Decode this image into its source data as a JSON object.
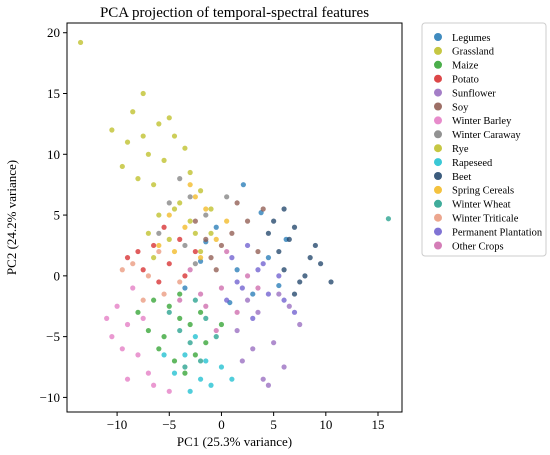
{
  "chart_data": {
    "type": "scatter",
    "title": "PCA projection of temporal-spectral features",
    "xlabel": "PC1 (25.3% variance)",
    "ylabel": "PC2 (24.2% variance)",
    "xlim": [
      -14.8,
      17.3
    ],
    "ylim": [
      -11.2,
      20.8
    ],
    "xticks": [
      -10,
      -5,
      0,
      5,
      10,
      15
    ],
    "yticks": [
      -10,
      -5,
      0,
      5,
      10,
      15,
      20
    ],
    "xtick_labels": [
      "−10",
      "−5",
      "0",
      "5",
      "10",
      "15"
    ],
    "ytick_labels": [
      "−10",
      "−5",
      "0",
      "5",
      "10",
      "15",
      "20"
    ],
    "grid": false,
    "legend_position": "outside-right",
    "series": [
      {
        "name": "Legumes",
        "color": "#1f77b4",
        "points": [
          [
            2.1,
            7.5
          ],
          [
            3.8,
            5.2
          ],
          [
            -1.5,
            2.8
          ],
          [
            4.5,
            1.5
          ],
          [
            0.8,
            -2.2
          ],
          [
            6.2,
            3.0
          ],
          [
            -3.5,
            -1.0
          ],
          [
            1.5,
            0.5
          ],
          [
            -0.5,
            4.0
          ],
          [
            3.0,
            -1.5
          ],
          [
            5.5,
            -0.8
          ],
          [
            -2.0,
            1.2
          ]
        ]
      },
      {
        "name": "Grassland",
        "color": "#bcbd22",
        "points": [
          [
            -7.5,
            15.0
          ],
          [
            -8.5,
            13.5
          ],
          [
            -6.0,
            12.5
          ],
          [
            -9.0,
            11.0
          ],
          [
            -4.5,
            11.5
          ],
          [
            -7.0,
            10.0
          ],
          [
            -5.5,
            9.5
          ],
          [
            -3.0,
            8.5
          ],
          [
            -8.0,
            8.0
          ],
          [
            -2.0,
            7.0
          ],
          [
            -6.5,
            7.5
          ],
          [
            -4.0,
            6.0
          ],
          [
            -1.0,
            5.5
          ],
          [
            -9.5,
            9.0
          ],
          [
            -5.0,
            13.0
          ],
          [
            -3.5,
            10.5
          ],
          [
            -10.5,
            12.0
          ],
          [
            -6.0,
            5.0
          ],
          [
            -2.5,
            3.5
          ],
          [
            -7.5,
            11.5
          ]
        ]
      },
      {
        "name": "Maize",
        "color": "#2ca02c",
        "points": [
          [
            -4.0,
            -3.5
          ],
          [
            -5.5,
            -5.0
          ],
          [
            -2.5,
            -6.5
          ],
          [
            -6.5,
            -2.0
          ],
          [
            -3.0,
            -4.0
          ],
          [
            -7.0,
            -4.5
          ],
          [
            -1.5,
            -5.5
          ],
          [
            -4.5,
            -7.0
          ],
          [
            -5.0,
            -2.5
          ],
          [
            -2.0,
            -3.0
          ],
          [
            -6.0,
            -6.0
          ],
          [
            -3.5,
            -8.0
          ],
          [
            0.0,
            -4.0
          ],
          [
            -8.0,
            -3.0
          ],
          [
            -4.0,
            -1.5
          ]
        ]
      },
      {
        "name": "Potato",
        "color": "#d62728",
        "points": [
          [
            -6.5,
            2.5
          ],
          [
            -5.0,
            1.0
          ],
          [
            -7.5,
            0.5
          ],
          [
            -4.0,
            3.0
          ],
          [
            -8.0,
            2.0
          ],
          [
            -3.5,
            0.0
          ],
          [
            -6.0,
            -0.5
          ],
          [
            -9.0,
            1.5
          ],
          [
            -2.5,
            2.0
          ],
          [
            -5.5,
            4.0
          ]
        ]
      },
      {
        "name": "Sunflower",
        "color": "#9467bd",
        "points": [
          [
            3.5,
            -3.0
          ],
          [
            5.0,
            -5.5
          ],
          [
            2.0,
            -7.0
          ],
          [
            6.5,
            -2.5
          ],
          [
            4.0,
            -8.5
          ],
          [
            1.5,
            -4.5
          ],
          [
            7.5,
            -4.0
          ],
          [
            3.0,
            -6.0
          ],
          [
            5.5,
            -1.5
          ],
          [
            2.5,
            -2.0
          ],
          [
            6.0,
            -7.5
          ],
          [
            4.5,
            -9.0
          ]
        ]
      },
      {
        "name": "Soy",
        "color": "#8c564b",
        "points": [
          [
            1.0,
            3.5
          ],
          [
            -1.0,
            1.5
          ],
          [
            2.5,
            4.5
          ],
          [
            0.0,
            2.5
          ],
          [
            -2.5,
            4.5
          ],
          [
            3.5,
            2.0
          ],
          [
            1.5,
            6.0
          ],
          [
            -0.5,
            0.5
          ],
          [
            4.0,
            5.5
          ],
          [
            -1.5,
            3.0
          ]
        ]
      },
      {
        "name": "Winter Barley",
        "color": "#e377c2",
        "points": [
          [
            -9.0,
            -4.0
          ],
          [
            -8.0,
            -6.5
          ],
          [
            -10.0,
            -2.5
          ],
          [
            -7.0,
            -8.0
          ],
          [
            -9.5,
            -6.0
          ],
          [
            -6.5,
            -9.0
          ],
          [
            -10.5,
            -5.0
          ],
          [
            -8.5,
            -1.0
          ],
          [
            -7.5,
            -3.5
          ],
          [
            -5.0,
            -9.5
          ],
          [
            -9.0,
            -8.5
          ],
          [
            -11.0,
            -3.5
          ]
        ]
      },
      {
        "name": "Winter Caraway",
        "color": "#7f7f7f",
        "points": [
          [
            -3.0,
            6.5
          ],
          [
            -5.0,
            6.0
          ],
          [
            -1.5,
            5.0
          ],
          [
            -4.0,
            8.0
          ],
          [
            -2.5,
            1.0
          ],
          [
            -6.0,
            3.5
          ],
          [
            0.5,
            6.5
          ],
          [
            -3.5,
            2.5
          ]
        ]
      },
      {
        "name": "Rye",
        "color": "#bcbd22",
        "points": [
          [
            -13.5,
            19.2
          ],
          [
            -5.0,
            3.0
          ],
          [
            -3.0,
            4.5
          ],
          [
            -6.5,
            1.5
          ],
          [
            -2.0,
            2.0
          ],
          [
            -4.5,
            5.5
          ],
          [
            -1.0,
            3.5
          ],
          [
            -7.0,
            3.5
          ]
        ]
      },
      {
        "name": "Rapeseed",
        "color": "#17becf",
        "points": [
          [
            -2.0,
            -8.5
          ],
          [
            -3.5,
            -6.5
          ],
          [
            -1.0,
            -9.0
          ],
          [
            -4.5,
            -8.0
          ],
          [
            0.0,
            -7.5
          ],
          [
            -2.5,
            -5.0
          ],
          [
            -5.5,
            -6.5
          ],
          [
            -1.5,
            -7.0
          ],
          [
            1.0,
            -8.5
          ],
          [
            -3.0,
            -9.5
          ]
        ]
      },
      {
        "name": "Beet",
        "color": "#1a3f66",
        "points": [
          [
            5.5,
            2.0
          ],
          [
            7.0,
            4.0
          ],
          [
            6.0,
            0.5
          ],
          [
            8.5,
            1.5
          ],
          [
            5.0,
            4.5
          ],
          [
            7.5,
            -0.5
          ],
          [
            9.0,
            2.5
          ],
          [
            6.5,
            3.0
          ],
          [
            8.0,
            0.0
          ],
          [
            4.5,
            3.5
          ],
          [
            9.5,
            1.0
          ],
          [
            7.0,
            -1.5
          ],
          [
            10.5,
            -0.5
          ],
          [
            6.0,
            5.5
          ]
        ]
      },
      {
        "name": "Spring Cereals",
        "color": "#f2b71d",
        "points": [
          [
            -3.5,
            4.0
          ],
          [
            -1.5,
            5.5
          ],
          [
            -4.5,
            2.0
          ],
          [
            -2.5,
            6.5
          ],
          [
            -0.5,
            3.0
          ],
          [
            -5.0,
            5.0
          ],
          [
            -2.0,
            1.5
          ],
          [
            -3.0,
            7.5
          ],
          [
            0.5,
            4.5
          ],
          [
            -6.0,
            2.5
          ]
        ]
      },
      {
        "name": "Winter Wheat",
        "color": "#1f9e89",
        "points": [
          [
            -3.0,
            -5.5
          ],
          [
            -1.5,
            -3.5
          ],
          [
            -4.0,
            -4.5
          ],
          [
            -2.0,
            -7.0
          ],
          [
            -0.5,
            -5.0
          ],
          [
            -5.0,
            -3.0
          ],
          [
            -2.5,
            -2.0
          ],
          [
            -3.5,
            -7.5
          ],
          [
            16.0,
            4.7
          ]
        ]
      },
      {
        "name": "Winter Triticale",
        "color": "#e9967a",
        "points": [
          [
            -7.0,
            0.0
          ],
          [
            -5.5,
            -1.5
          ],
          [
            -8.5,
            1.0
          ],
          [
            -6.0,
            2.0
          ],
          [
            -4.0,
            -0.5
          ],
          [
            -9.5,
            0.5
          ],
          [
            -7.5,
            -2.0
          ]
        ]
      },
      {
        "name": "Permanent Plantation",
        "color": "#6a5acd",
        "points": [
          [
            2.0,
            -1.0
          ],
          [
            3.5,
            0.5
          ],
          [
            1.0,
            1.5
          ],
          [
            4.5,
            -1.5
          ],
          [
            0.5,
            -2.0
          ],
          [
            5.5,
            0.0
          ],
          [
            2.5,
            2.5
          ],
          [
            3.0,
            -3.5
          ],
          [
            6.0,
            -2.0
          ],
          [
            1.5,
            -0.5
          ],
          [
            4.0,
            1.0
          ],
          [
            7.0,
            -3.0
          ]
        ]
      },
      {
        "name": "Other Crops",
        "color": "#cc66aa",
        "points": [
          [
            0.0,
            -1.0
          ],
          [
            -1.5,
            -2.5
          ],
          [
            1.5,
            -3.0
          ],
          [
            -3.0,
            0.5
          ],
          [
            2.5,
            0.0
          ],
          [
            -0.5,
            -4.5
          ],
          [
            3.5,
            -1.0
          ],
          [
            -2.0,
            -1.5
          ],
          [
            0.5,
            2.0
          ],
          [
            -4.0,
            -2.0
          ]
        ]
      }
    ]
  }
}
